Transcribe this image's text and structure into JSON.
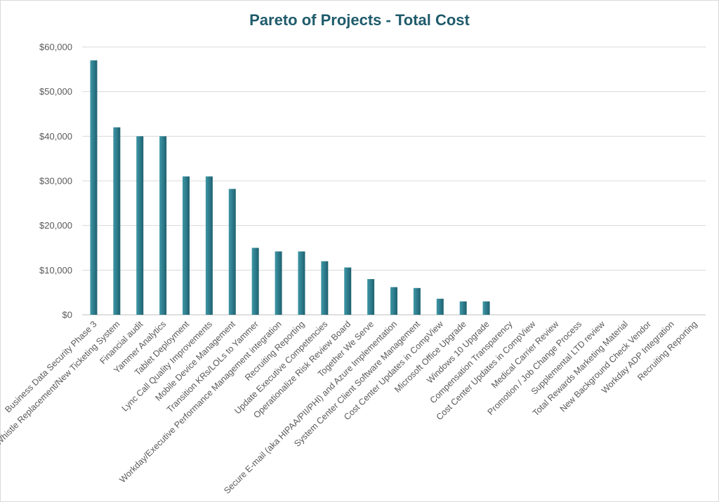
{
  "chart_data": {
    "type": "bar",
    "title": "Pareto of Projects - Total Cost",
    "xlabel": "",
    "ylabel": "",
    "ylim": [
      0,
      60000
    ],
    "y_ticks": [
      "$0",
      "$10,000",
      "$20,000",
      "$30,000",
      "$40,000",
      "$50,000",
      "$60,000"
    ],
    "y_tick_values": [
      0,
      10000,
      20000,
      30000,
      40000,
      50000,
      60000
    ],
    "grid": true,
    "bar_color": "#2e7d8c",
    "categories": [
      "Business Data Security Phase 3",
      "Whistle Replacement/New Ticketing System",
      "Financial audit",
      "Yammer Analytics",
      "Tablet Deployment",
      "Lync Call Quality Improvements",
      "Mobile Device Management",
      "Transition KRs/LOLs to Yammer",
      "Workday/Executive Performance Management integration",
      "Recruiting Reporting",
      "Update Executive Competencies",
      "Operationalize Risk Review Board",
      "Together We Serve",
      "Secure E-mail (aka HIPAA/PII/PHI) and Azure Implementation",
      "System Center Client Software Management",
      "Cost Center Updates in CompView",
      "Microsoft Office Upgrade",
      "Windows 10 Upgrade",
      "Compensation Transparency",
      "Cost Center Updates in CompView",
      "Medical Carrier Review",
      "Promotion / Job Change Process",
      "Supplemental LTD review",
      "Total Rewards Marketing Material",
      "New Background Check Vendor",
      "Workday ADP Integration",
      "Recruiting Reporting"
    ],
    "values": [
      57000,
      42000,
      40000,
      40000,
      31000,
      31000,
      28200,
      15000,
      14200,
      14200,
      12000,
      10600,
      8000,
      6200,
      6000,
      3600,
      3000,
      3000,
      0,
      0,
      0,
      0,
      0,
      0,
      0,
      0,
      0
    ]
  }
}
